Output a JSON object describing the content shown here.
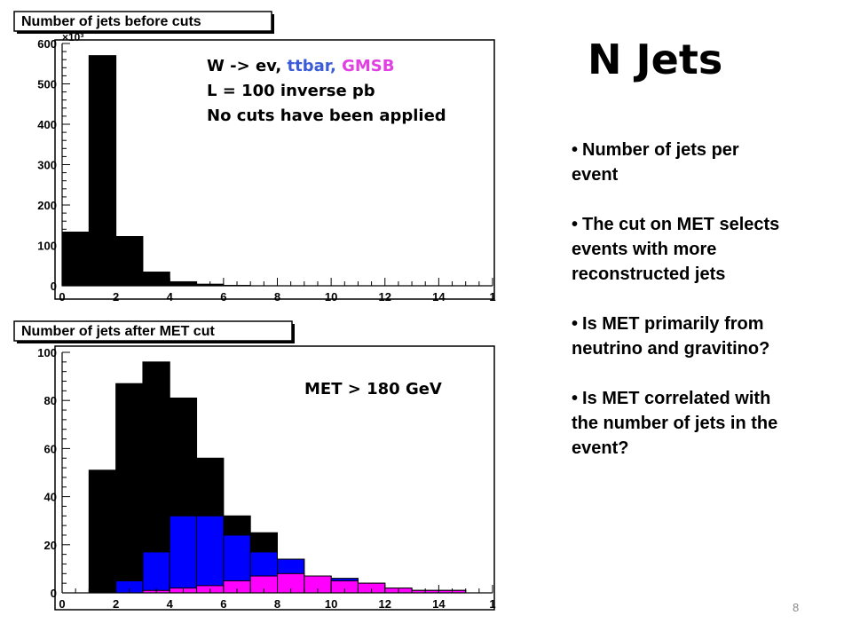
{
  "slide": {
    "title": "N Jets",
    "page_number": "8",
    "bullets": [
      "Number of jets per event",
      "The cut on MET selects events with more reconstructed jets",
      "Is MET primarily from neutrino and gravitino?",
      "Is MET correlated with the number of jets in the event?"
    ]
  },
  "colors": {
    "wenu": "#000000",
    "ttbar": "#0000ff",
    "gmsb": "#ff00ff"
  },
  "chart_data": [
    {
      "type": "bar",
      "title": "Number of jets before cuts",
      "y_exponent": "×10³",
      "xlim": [
        0,
        16
      ],
      "ylim": [
        0,
        600
      ],
      "xticks": [
        "0",
        "2",
        "4",
        "6",
        "8",
        "10",
        "12",
        "14",
        "1"
      ],
      "yticks": [
        "0",
        "100",
        "200",
        "300",
        "400",
        "500",
        "600"
      ],
      "bin_edges": [
        0,
        1,
        2,
        3,
        4,
        5,
        6,
        7,
        8,
        9,
        10,
        11,
        12,
        13,
        14,
        15,
        16
      ],
      "series": [
        {
          "color": "#000000",
          "values": [
            133,
            570,
            122,
            34,
            10,
            4,
            1,
            0,
            0,
            0,
            0,
            0,
            0,
            0,
            0,
            0
          ]
        }
      ],
      "annotation": {
        "lines": [
          [
            {
              "text": "W -> ev, ",
              "color": "#000000"
            },
            {
              "text": "ttbar, ",
              "color": "#3b5bd8"
            },
            {
              "text": "GMSB",
              "color": "#e23fe2"
            }
          ],
          [
            {
              "text": "L = 100 inverse pb",
              "color": "#000000"
            }
          ],
          [
            {
              "text": "No cuts have been applied",
              "color": "#000000"
            }
          ]
        ]
      }
    },
    {
      "type": "bar",
      "title": "Number of jets after MET cut",
      "xlim": [
        0,
        16
      ],
      "ylim": [
        0,
        100
      ],
      "xticks": [
        "0",
        "2",
        "4",
        "6",
        "8",
        "10",
        "12",
        "14",
        "1"
      ],
      "yticks": [
        "0",
        "20",
        "40",
        "60",
        "80",
        "100"
      ],
      "bin_edges": [
        0,
        1,
        2,
        3,
        4,
        5,
        6,
        7,
        8,
        9,
        10,
        11,
        12,
        13,
        14,
        15,
        16
      ],
      "series": [
        {
          "color": "#000000",
          "values": [
            0,
            51,
            87,
            96,
            81,
            56,
            32,
            25,
            14,
            7,
            6,
            4,
            2,
            1,
            1,
            0
          ]
        },
        {
          "color": "#0000ff",
          "values": [
            0,
            0,
            5,
            17,
            32,
            32,
            24,
            17,
            14,
            7,
            6,
            4,
            2,
            1,
            1,
            0
          ]
        },
        {
          "color": "#ff00ff",
          "values": [
            0,
            0,
            0,
            1,
            2,
            3,
            5,
            7,
            8,
            7,
            5,
            4,
            2,
            1,
            1,
            0
          ]
        }
      ],
      "annotation": {
        "lines": [
          [
            {
              "text": "MET > 180 GeV",
              "color": "#000000"
            }
          ]
        ]
      }
    }
  ]
}
